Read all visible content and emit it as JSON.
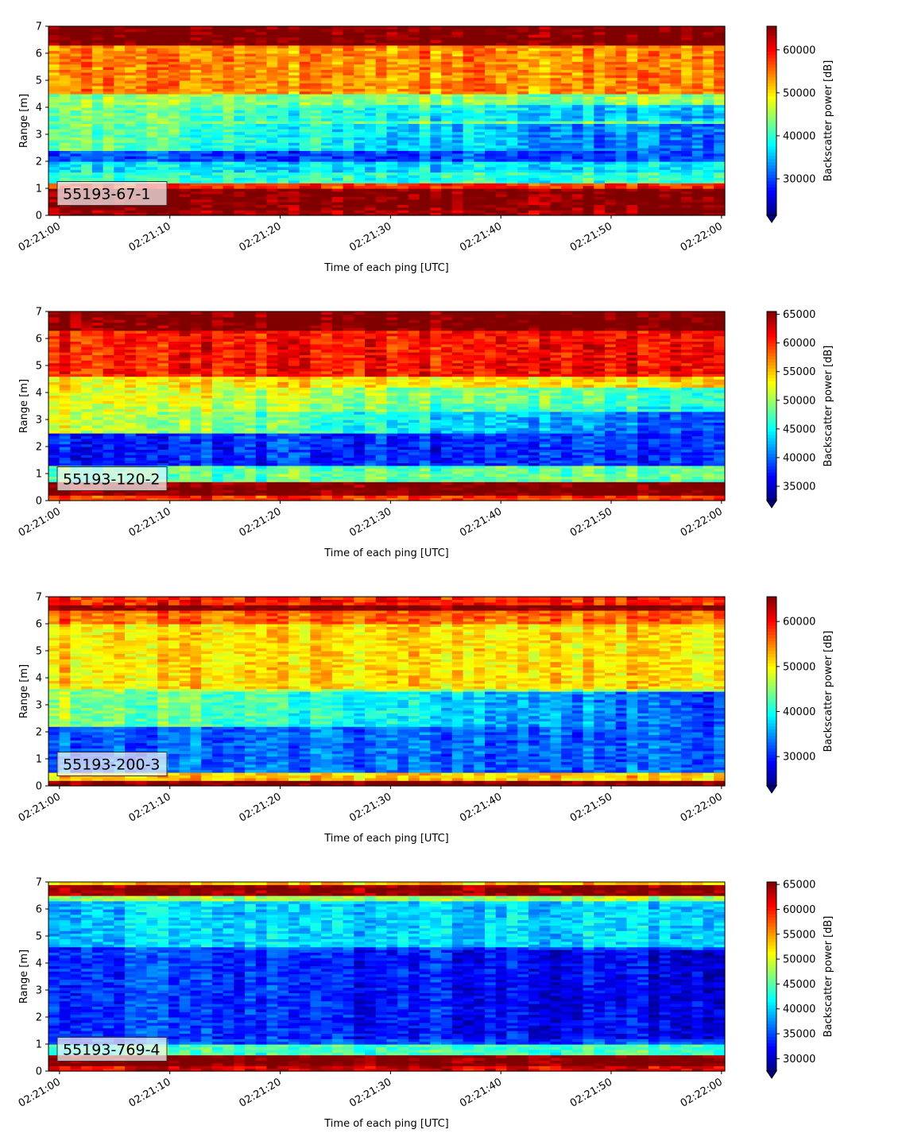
{
  "figure": {
    "colormap": "jet",
    "under_color": "#00007f"
  },
  "chart_data": [
    {
      "type": "heatmap",
      "label": "55193-67-1",
      "xlabel": "Time of each ping [UTC]",
      "ylabel": "Range [m]",
      "colorbar_label": "Backscatter power [dB]",
      "xticks": [
        "02:21:00",
        "02:21:10",
        "02:21:20",
        "02:21:30",
        "02:21:40",
        "02:21:50",
        "02:22:00"
      ],
      "yticks": [
        0,
        1,
        2,
        3,
        4,
        5,
        6,
        7
      ],
      "ylim": [
        0,
        7
      ],
      "xlim_seconds": [
        -1,
        60.3
      ],
      "clim": [
        21500,
        65500
      ],
      "cbar_ticks": [
        30000,
        40000,
        50000,
        60000
      ],
      "bands": [
        {
          "from": 0.0,
          "to": 0.22,
          "v": 64000
        },
        {
          "from": 0.22,
          "to": 1.05,
          "v": 65500
        },
        {
          "from": 1.05,
          "to": 1.2,
          "v": 58000
        },
        {
          "from": 1.2,
          "to": 1.55,
          "v": 40000
        },
        {
          "from": 1.55,
          "to": 2.0,
          "v": 37000
        },
        {
          "from": 2.0,
          "to": 2.4,
          "v": 30000
        },
        {
          "from": 2.4,
          "to": 3.9,
          "v": 43000
        },
        {
          "from": 3.9,
          "to": 4.5,
          "v": 44000
        },
        {
          "from": 4.5,
          "to": 6.35,
          "v": 54000
        },
        {
          "from": 6.35,
          "to": 7.0,
          "v": 66000
        }
      ],
      "trends": [
        {
          "from": 2.4,
          "to": 3.4,
          "delta": -12000
        },
        {
          "from": 3.5,
          "to": 4.1,
          "delta": -9000
        }
      ],
      "noise": 6000,
      "seed": 11
    },
    {
      "type": "heatmap",
      "label": "55193-120-2",
      "xlabel": "Time of each ping [UTC]",
      "ylabel": "Range [m]",
      "colorbar_label": "Backscatter power [dB]",
      "xticks": [
        "02:21:00",
        "02:21:10",
        "02:21:20",
        "02:21:30",
        "02:21:40",
        "02:21:50",
        "02:22:00"
      ],
      "yticks": [
        0,
        1,
        2,
        3,
        4,
        5,
        6,
        7
      ],
      "ylim": [
        0,
        7
      ],
      "xlim_seconds": [
        -1,
        60.3
      ],
      "clim": [
        32500,
        65500
      ],
      "cbar_ticks": [
        35000,
        40000,
        45000,
        50000,
        55000,
        60000,
        65000
      ],
      "bands": [
        {
          "from": 0.0,
          "to": 0.22,
          "v": 60000
        },
        {
          "from": 0.22,
          "to": 0.75,
          "v": 66000
        },
        {
          "from": 0.75,
          "to": 1.35,
          "v": 48000
        },
        {
          "from": 1.35,
          "to": 2.5,
          "v": 38000
        },
        {
          "from": 2.5,
          "to": 3.6,
          "v": 53000
        },
        {
          "from": 3.6,
          "to": 4.6,
          "v": 54000
        },
        {
          "from": 4.6,
          "to": 6.35,
          "v": 61000
        },
        {
          "from": 6.35,
          "to": 7.0,
          "v": 66000
        }
      ],
      "trends": [
        {
          "from": 2.5,
          "to": 3.3,
          "delta": -15000
        },
        {
          "from": 3.3,
          "to": 4.2,
          "delta": -8000
        }
      ],
      "noise": 4500,
      "seed": 23
    },
    {
      "type": "heatmap",
      "label": "55193-200-3",
      "xlabel": "Time of each ping [UTC]",
      "ylabel": "Range [m]",
      "colorbar_label": "Backscatter power [dB]",
      "xticks": [
        "02:21:00",
        "02:21:10",
        "02:21:20",
        "02:21:30",
        "02:21:40",
        "02:21:50",
        "02:22:00"
      ],
      "yticks": [
        0,
        1,
        2,
        3,
        4,
        5,
        6,
        7
      ],
      "ylim": [
        0,
        7
      ],
      "xlim_seconds": [
        -1,
        60.3
      ],
      "clim": [
        23500,
        65500
      ],
      "cbar_ticks": [
        30000,
        40000,
        50000,
        60000
      ],
      "bands": [
        {
          "from": 0.0,
          "to": 0.2,
          "v": 66000
        },
        {
          "from": 0.2,
          "to": 0.45,
          "v": 52000
        },
        {
          "from": 0.45,
          "to": 2.2,
          "v": 33000
        },
        {
          "from": 2.2,
          "to": 3.6,
          "v": 46000
        },
        {
          "from": 3.6,
          "to": 6.0,
          "v": 51000
        },
        {
          "from": 6.0,
          "to": 6.5,
          "v": 56000
        },
        {
          "from": 6.5,
          "to": 6.75,
          "v": 66000
        },
        {
          "from": 6.75,
          "to": 7.0,
          "v": 59000
        }
      ],
      "trends": [
        {
          "from": 2.2,
          "to": 3.5,
          "delta": -14000
        }
      ],
      "noise": 5500,
      "seed": 37
    },
    {
      "type": "heatmap",
      "label": "55193-769-4",
      "xlabel": "Time of each ping [UTC]",
      "ylabel": "Range [m]",
      "colorbar_label": "Backscatter power [dB]",
      "xticks": [
        "02:21:00",
        "02:21:10",
        "02:21:20",
        "02:21:30",
        "02:21:40",
        "02:21:50",
        "02:22:00"
      ],
      "yticks": [
        0,
        1,
        2,
        3,
        4,
        5,
        6,
        7
      ],
      "ylim": [
        0,
        7
      ],
      "xlim_seconds": [
        -1,
        60.3
      ],
      "clim": [
        27500,
        65500
      ],
      "cbar_ticks": [
        30000,
        35000,
        40000,
        45000,
        50000,
        55000,
        60000,
        65000
      ],
      "bands": [
        {
          "from": 0.0,
          "to": 0.22,
          "v": 62000
        },
        {
          "from": 0.22,
          "to": 0.65,
          "v": 66000
        },
        {
          "from": 0.65,
          "to": 1.05,
          "v": 44000
        },
        {
          "from": 1.05,
          "to": 4.6,
          "v": 35000
        },
        {
          "from": 4.6,
          "to": 6.3,
          "v": 40000
        },
        {
          "from": 6.3,
          "to": 6.5,
          "v": 48000
        },
        {
          "from": 6.5,
          "to": 6.9,
          "v": 65000
        },
        {
          "from": 6.9,
          "to": 7.0,
          "v": 53000
        }
      ],
      "trends": [
        {
          "from": 1.2,
          "to": 4.5,
          "delta": -4000
        }
      ],
      "noise": 5000,
      "seed": 51
    }
  ]
}
